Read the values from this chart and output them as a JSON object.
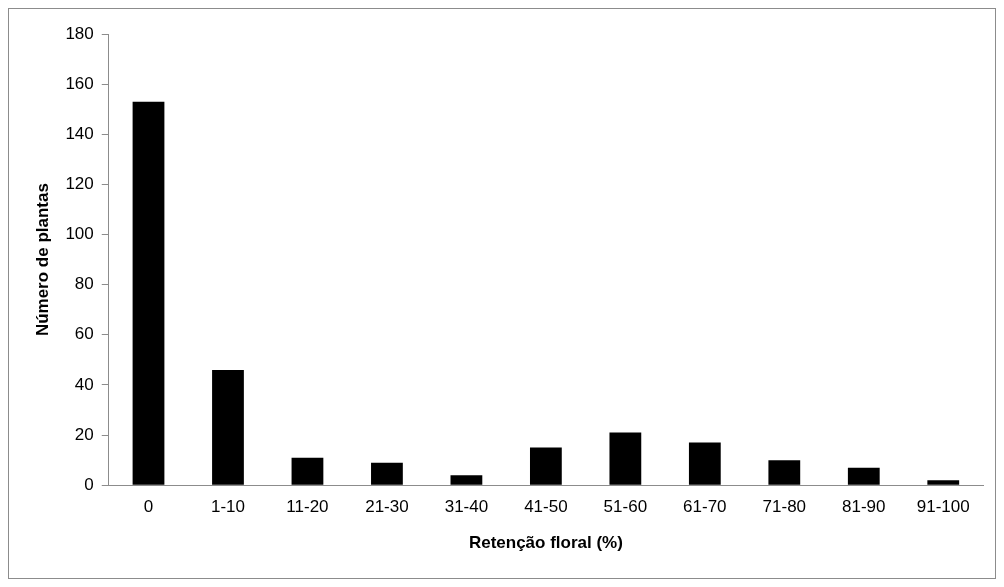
{
  "chart_data": {
    "type": "bar",
    "xlabel": "Retenção floral (%)",
    "ylabel": "Número de plantas",
    "categories": [
      "0",
      "1-10",
      "11-20",
      "21-30",
      "31-40",
      "41-50",
      "51-60",
      "61-70",
      "71-80",
      "81-90",
      "91-100"
    ],
    "values": [
      153,
      46,
      11,
      9,
      4,
      15,
      21,
      17,
      10,
      7,
      2
    ],
    "color": "#000000",
    "ylim": [
      0,
      180
    ],
    "yticks": [
      0,
      20,
      40,
      60,
      80,
      100,
      120,
      140,
      160,
      180
    ],
    "grid": false,
    "legend": false
  }
}
